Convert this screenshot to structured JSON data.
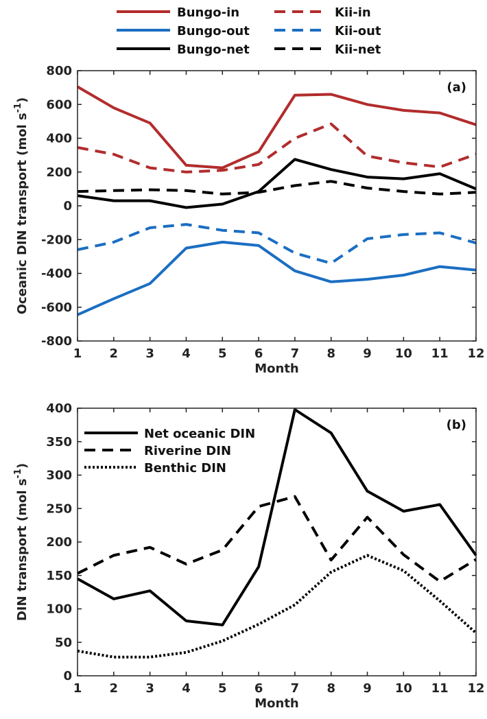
{
  "chart_data": [
    {
      "type": "line",
      "panel_label": "(a)",
      "xlabel": "Month",
      "ylabel": "Oceanic DIN transport (mol s",
      "ylabel_sup": "-1",
      "ylabel_close": ")",
      "xlim": [
        1,
        12
      ],
      "ylim": [
        -800,
        800
      ],
      "x": [
        1,
        2,
        3,
        4,
        5,
        6,
        7,
        8,
        9,
        10,
        11,
        12
      ],
      "x_ticks": [
        1,
        2,
        3,
        4,
        5,
        6,
        7,
        8,
        9,
        10,
        11,
        12
      ],
      "y_ticks": [
        -800,
        -600,
        -400,
        -200,
        0,
        200,
        400,
        600,
        800
      ],
      "grid": false,
      "legend_position": "above",
      "series": [
        {
          "name": "Bungo-in",
          "color": "#b22c2c",
          "dash": "solid",
          "values": [
            705,
            580,
            490,
            240,
            225,
            320,
            655,
            660,
            600,
            565,
            550,
            480
          ]
        },
        {
          "name": "Kii-in",
          "color": "#b22c2c",
          "dash": "dashed",
          "values": [
            345,
            305,
            225,
            200,
            210,
            245,
            400,
            485,
            295,
            255,
            230,
            305
          ]
        },
        {
          "name": "Bungo-out",
          "color": "#1b6ec2",
          "dash": "solid",
          "values": [
            -645,
            -550,
            -460,
            -250,
            -215,
            -235,
            -385,
            -450,
            -435,
            -410,
            -360,
            -380
          ]
        },
        {
          "name": "Kii-out",
          "color": "#1b6ec2",
          "dash": "dashed",
          "values": [
            -260,
            -215,
            -130,
            -110,
            -145,
            -160,
            -280,
            -340,
            -195,
            -170,
            -160,
            -220
          ]
        },
        {
          "name": "Bungo-net",
          "color": "#000000",
          "dash": "solid",
          "values": [
            60,
            30,
            30,
            -10,
            10,
            85,
            275,
            215,
            170,
            160,
            190,
            100
          ]
        },
        {
          "name": "Kii-net",
          "color": "#000000",
          "dash": "dashed",
          "values": [
            85,
            90,
            95,
            90,
            70,
            80,
            120,
            145,
            105,
            85,
            70,
            80
          ]
        }
      ]
    },
    {
      "type": "line",
      "panel_label": "(b)",
      "xlabel": "Month",
      "ylabel": "DIN transport (mol s",
      "ylabel_sup": "-1",
      "ylabel_close": ")",
      "xlim": [
        1,
        12
      ],
      "ylim": [
        0,
        400
      ],
      "x": [
        1,
        2,
        3,
        4,
        5,
        6,
        7,
        8,
        9,
        10,
        11,
        12
      ],
      "x_ticks": [
        1,
        2,
        3,
        4,
        5,
        6,
        7,
        8,
        9,
        10,
        11,
        12
      ],
      "y_ticks": [
        0,
        50,
        100,
        150,
        200,
        250,
        300,
        350,
        400
      ],
      "grid": false,
      "legend_position": "top-left",
      "series": [
        {
          "name": "Net oceanic DIN",
          "color": "#000000",
          "dash": "solid",
          "values": [
            145,
            115,
            127,
            82,
            76,
            163,
            398,
            363,
            276,
            246,
            256,
            180
          ]
        },
        {
          "name": "Riverine DIN",
          "color": "#000000",
          "dash": "dashed",
          "values": [
            153,
            180,
            192,
            167,
            188,
            253,
            268,
            173,
            237,
            181,
            141,
            174
          ]
        },
        {
          "name": "Benthic DIN",
          "color": "#000000",
          "dash": "dotted",
          "values": [
            37,
            28,
            28,
            35,
            52,
            77,
            106,
            155,
            180,
            157,
            112,
            64
          ]
        }
      ]
    }
  ]
}
